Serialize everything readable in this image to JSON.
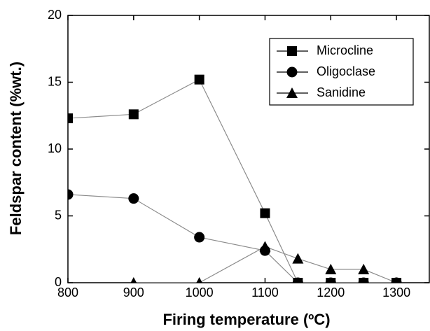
{
  "chart_data": {
    "type": "line",
    "x_label": "Firing temperature (ºC)",
    "y_label": "Feldspar content (%wt.)",
    "x": [
      800,
      900,
      1000,
      1100,
      1150,
      1200,
      1250,
      1300
    ],
    "series": [
      {
        "name": "Microcline",
        "color": "#000000",
        "marker": "square",
        "values": [
          12.3,
          12.6,
          15.2,
          5.2,
          0,
          0,
          0,
          0
        ]
      },
      {
        "name": "Oligoclase",
        "color": "#000000",
        "marker": "circle",
        "values": [
          6.6,
          6.3,
          3.4,
          2.4,
          0,
          0,
          0,
          0
        ]
      },
      {
        "name": "Sanidine",
        "color": "#000000",
        "marker": "triangle",
        "values": [
          null,
          0,
          0,
          2.7,
          1.8,
          1.0,
          1.0,
          0
        ]
      }
    ],
    "line_color": "#8c8c8c",
    "xlim": [
      800,
      1350
    ],
    "xticks": [
      800,
      900,
      1000,
      1100,
      1200,
      1300
    ],
    "ylim": [
      0,
      20
    ],
    "yticks": [
      0,
      5,
      10,
      15,
      20
    ],
    "legend": "top-right"
  }
}
